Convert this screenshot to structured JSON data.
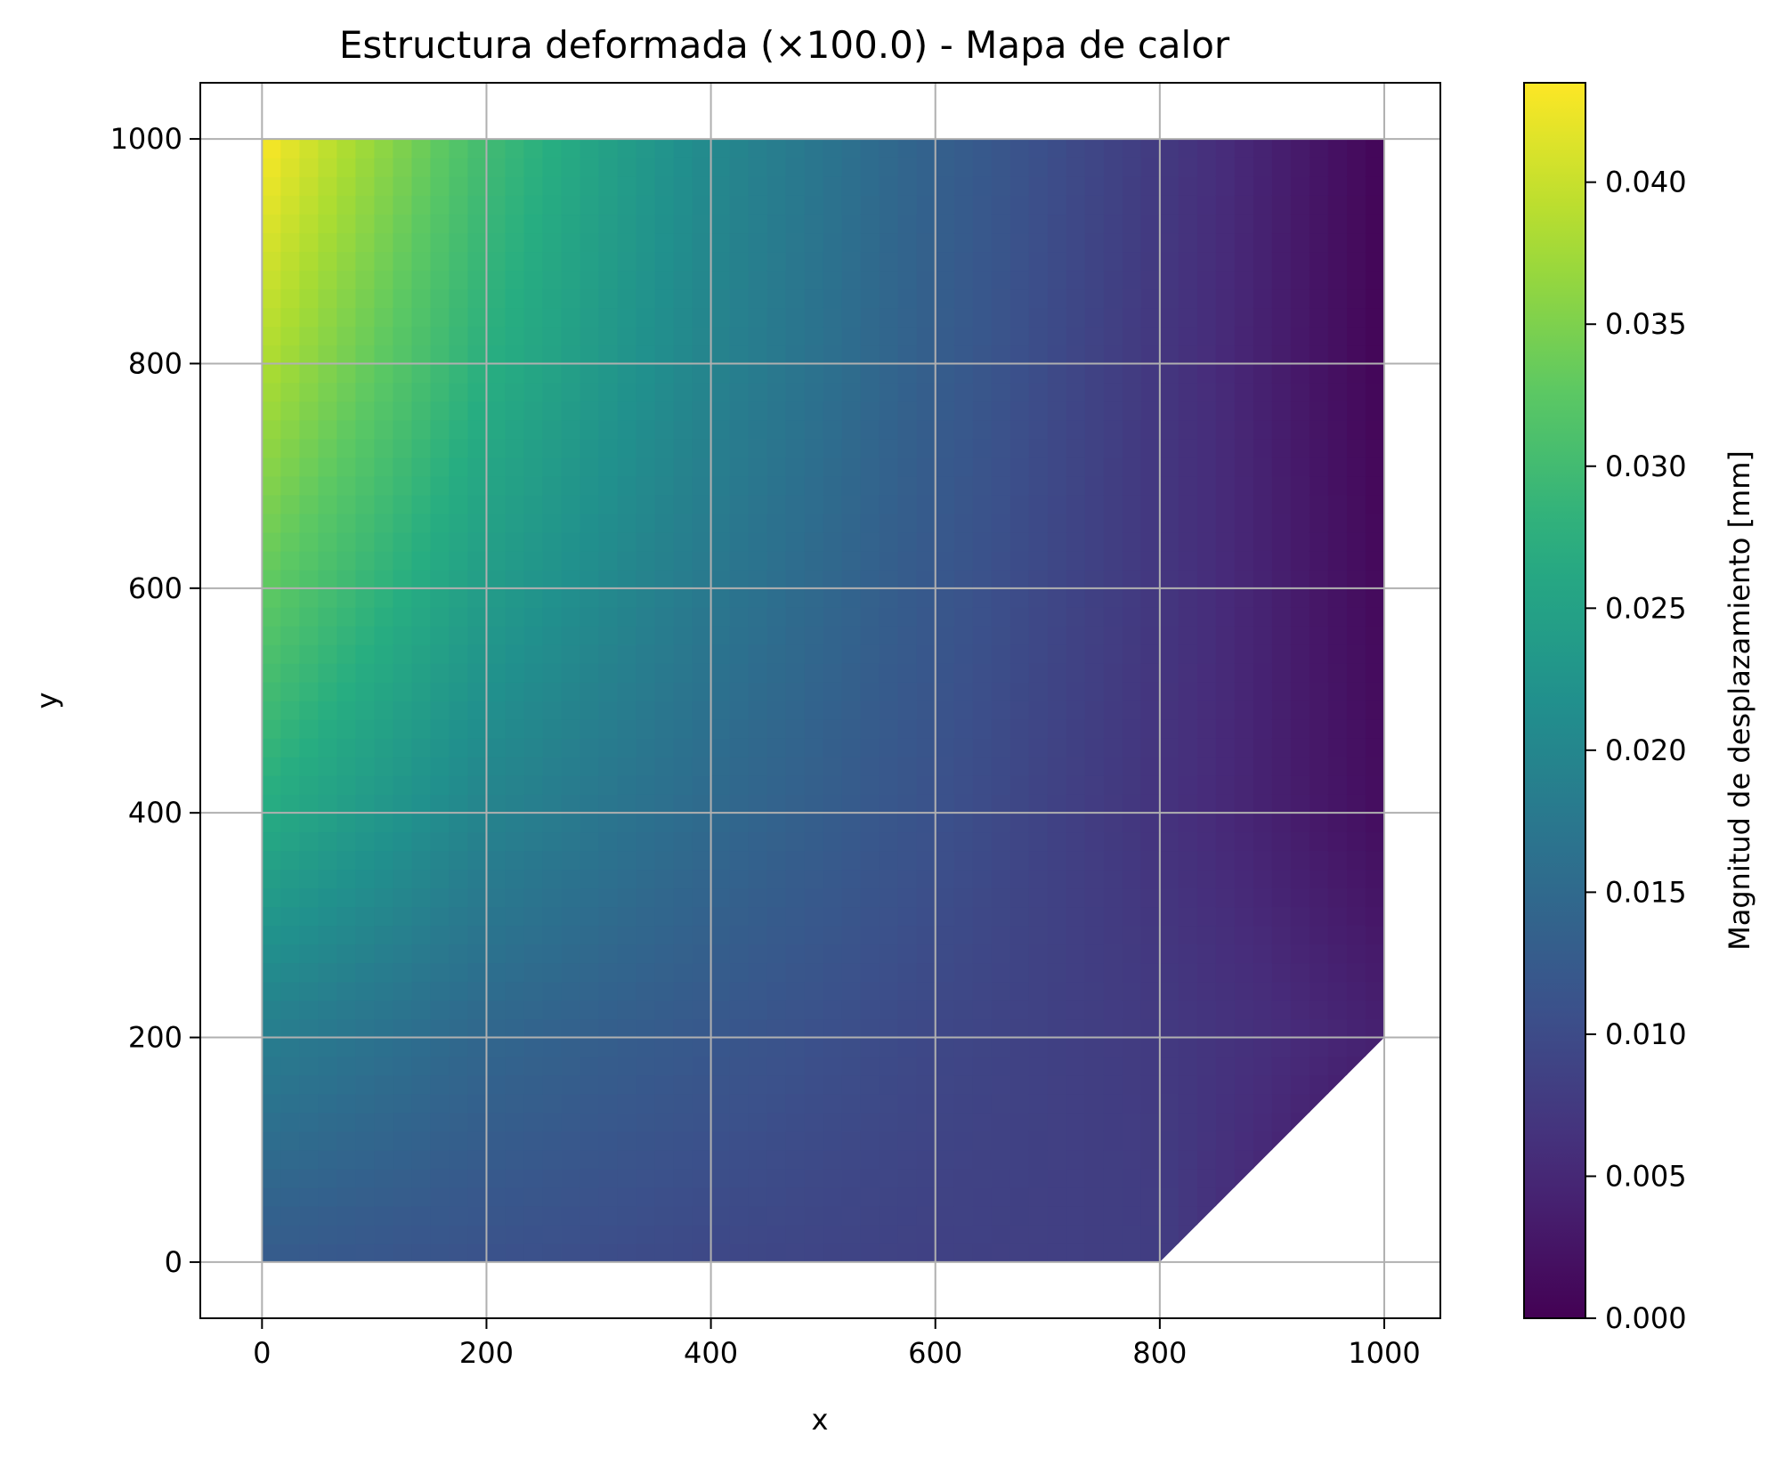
{
  "chart_data": {
    "type": "heatmap",
    "title": "Estructura deformada (×100.0) - Mapa de calor",
    "xlabel": "x",
    "ylabel": "y",
    "xlim": [
      -55,
      1050
    ],
    "ylim": [
      -50,
      1050
    ],
    "xticks": [
      "0",
      "200",
      "400",
      "600",
      "800",
      "1000"
    ],
    "yticks": [
      "0",
      "200",
      "400",
      "600",
      "800",
      "1000"
    ],
    "xtick_values": [
      0,
      200,
      400,
      600,
      800,
      1000
    ],
    "ytick_values": [
      0,
      200,
      400,
      600,
      800,
      1000
    ],
    "grid": true,
    "colormap": "viridis",
    "colorbar": {
      "label": "Magnitud de desplazamiento [mm]",
      "min": 0.0,
      "max": 0.0435,
      "ticks": [
        "0.000",
        "0.005",
        "0.010",
        "0.015",
        "0.020",
        "0.025",
        "0.030",
        "0.035",
        "0.040"
      ],
      "tick_values": [
        0.0,
        0.005,
        0.01,
        0.015,
        0.02,
        0.025,
        0.03,
        0.035,
        0.04
      ]
    },
    "domain_polygon": [
      [
        0,
        0
      ],
      [
        800,
        0
      ],
      [
        1000,
        200
      ],
      [
        1000,
        1000
      ],
      [
        0,
        1000
      ]
    ],
    "field_samples": {
      "x": [
        0,
        200,
        400,
        600,
        800,
        1000
      ],
      "y": [
        0,
        200,
        400,
        600,
        800,
        1000
      ],
      "values": [
        [
          0.0125,
          0.011,
          0.0095,
          0.0085,
          0.008,
          0.0
        ],
        [
          0.0185,
          0.0145,
          0.012,
          0.0095,
          0.0075,
          0.004
        ],
        [
          0.027,
          0.0195,
          0.015,
          0.011,
          0.0065,
          0.0015
        ],
        [
          0.033,
          0.024,
          0.0175,
          0.012,
          0.007,
          0.001
        ],
        [
          0.0385,
          0.0275,
          0.0195,
          0.013,
          0.007,
          0.0005
        ],
        [
          0.0435,
          0.03,
          0.0205,
          0.0135,
          0.0075,
          0.0005
        ]
      ]
    }
  }
}
